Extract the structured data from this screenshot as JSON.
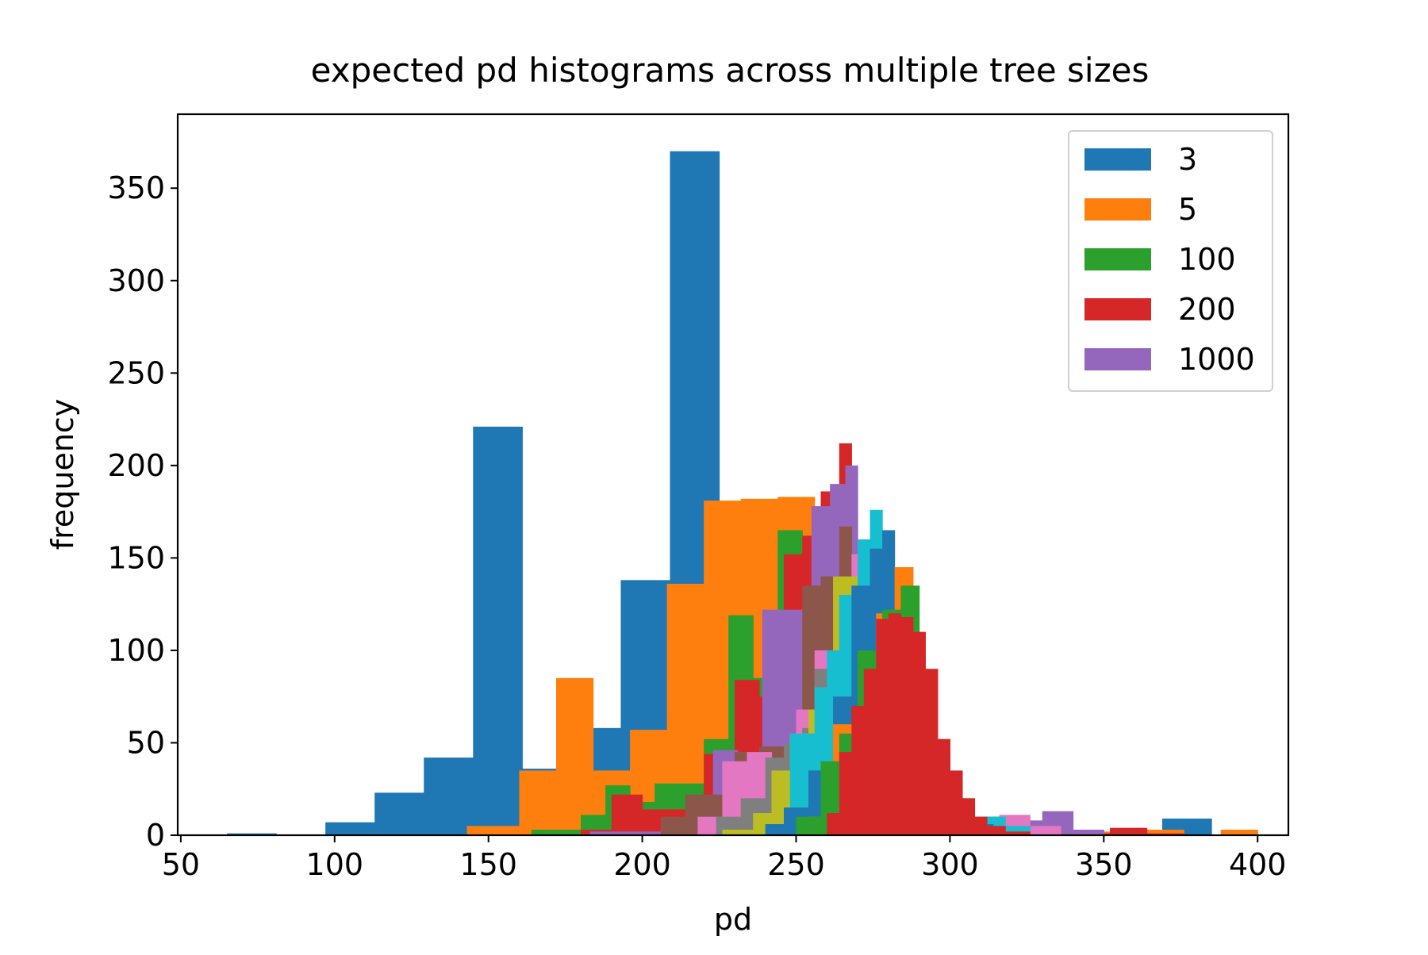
{
  "chart_data": {
    "type": "bar",
    "title": "expected pd histograms across multiple tree sizes",
    "xlabel": "pd",
    "ylabel": "frequency",
    "xlim": [
      49,
      410
    ],
    "ylim": [
      0,
      390
    ],
    "xticks": [
      50,
      100,
      150,
      200,
      250,
      300,
      350,
      400
    ],
    "yticks": [
      0,
      50,
      100,
      150,
      200,
      250,
      300,
      350
    ],
    "grid": false,
    "legend_position": "top-right",
    "legend": [
      {
        "label": "3",
        "color": "#1f77b4"
      },
      {
        "label": "5",
        "color": "#ff7f0e"
      },
      {
        "label": "100",
        "color": "#2ca02c"
      },
      {
        "label": "200",
        "color": "#d62728"
      },
      {
        "label": "1000",
        "color": "#9467bd"
      }
    ],
    "series": [
      {
        "color": "#1f77b4",
        "bins": [
          [
            65,
            81,
            1
          ],
          [
            81,
            97,
            0
          ],
          [
            97,
            113,
            7
          ],
          [
            113,
            129,
            23
          ],
          [
            129,
            145,
            42
          ],
          [
            145,
            161,
            221
          ],
          [
            161,
            177,
            36
          ],
          [
            177,
            193,
            58
          ],
          [
            193,
            209,
            138
          ],
          [
            209,
            225,
            370
          ],
          [
            225,
            241,
            5
          ],
          [
            241,
            257,
            4
          ],
          [
            257,
            273,
            12
          ],
          [
            273,
            289,
            9
          ],
          [
            289,
            305,
            20
          ],
          [
            305,
            321,
            10
          ],
          [
            321,
            337,
            3
          ],
          [
            337,
            353,
            0
          ],
          [
            353,
            369,
            2
          ],
          [
            369,
            385,
            9
          ]
        ]
      },
      {
        "color": "#ff7f0e",
        "bins": [
          [
            143,
            160,
            5
          ],
          [
            160,
            172,
            35
          ],
          [
            172,
            184,
            85
          ],
          [
            184,
            196,
            35
          ],
          [
            196,
            208,
            57
          ],
          [
            208,
            220,
            136
          ],
          [
            220,
            232,
            181
          ],
          [
            232,
            244,
            182
          ],
          [
            244,
            256,
            183
          ],
          [
            256,
            268,
            167
          ],
          [
            268,
            280,
            150
          ],
          [
            280,
            292,
            78
          ],
          [
            292,
            304,
            30
          ],
          [
            304,
            316,
            10
          ],
          [
            316,
            328,
            5
          ],
          [
            328,
            340,
            3
          ],
          [
            340,
            352,
            2
          ],
          [
            352,
            364,
            1
          ],
          [
            364,
            376,
            3
          ],
          [
            376,
            388,
            0
          ],
          [
            388,
            400,
            3
          ]
        ]
      },
      {
        "color": "#2ca02c",
        "bins": [
          [
            164,
            172,
            3
          ],
          [
            172,
            180,
            3
          ],
          [
            180,
            188,
            11
          ],
          [
            188,
            196,
            27
          ],
          [
            196,
            204,
            18
          ],
          [
            204,
            212,
            28
          ],
          [
            212,
            220,
            28
          ],
          [
            220,
            228,
            52
          ],
          [
            228,
            236,
            119
          ],
          [
            236,
            244,
            85
          ],
          [
            244,
            252,
            165
          ],
          [
            252,
            260,
            112
          ],
          [
            260,
            268,
            120
          ],
          [
            268,
            276,
            125
          ],
          [
            276,
            284,
            135
          ],
          [
            284,
            292,
            95
          ],
          [
            292,
            300,
            52
          ],
          [
            300,
            308,
            20
          ],
          [
            308,
            316,
            10
          ],
          [
            316,
            324,
            5
          ],
          [
            324,
            332,
            3
          ],
          [
            332,
            340,
            2
          ],
          [
            340,
            348,
            1
          ]
        ]
      },
      {
        "color": "#d62728",
        "bins": [
          [
            180,
            190,
            3
          ],
          [
            190,
            200,
            22
          ],
          [
            200,
            210,
            14
          ],
          [
            210,
            220,
            14
          ],
          [
            220,
            230,
            44
          ],
          [
            230,
            238,
            84
          ],
          [
            238,
            246,
            75
          ],
          [
            246,
            252,
            152
          ],
          [
            252,
            258,
            162
          ],
          [
            258,
            264,
            186
          ],
          [
            264,
            268,
            212
          ],
          [
            268,
            272,
            100
          ],
          [
            272,
            276,
            115
          ],
          [
            276,
            280,
            120
          ],
          [
            280,
            284,
            130
          ],
          [
            284,
            288,
            117
          ],
          [
            288,
            292,
            85
          ],
          [
            292,
            296,
            50
          ],
          [
            296,
            300,
            35
          ],
          [
            300,
            308,
            16
          ],
          [
            308,
            316,
            6
          ],
          [
            316,
            324,
            4
          ],
          [
            324,
            332,
            3
          ],
          [
            332,
            340,
            2
          ],
          [
            340,
            352,
            1
          ],
          [
            352,
            364,
            4
          ],
          [
            364,
            376,
            1
          ]
        ]
      },
      {
        "color": "#9467bd",
        "bins": [
          [
            183,
            191,
            2
          ],
          [
            191,
            199,
            2
          ],
          [
            199,
            207,
            2
          ],
          [
            207,
            215,
            6
          ],
          [
            215,
            223,
            20
          ],
          [
            223,
            231,
            46
          ],
          [
            231,
            239,
            45
          ],
          [
            239,
            247,
            122
          ],
          [
            247,
            255,
            122
          ],
          [
            255,
            261,
            178
          ],
          [
            261,
            266,
            190
          ],
          [
            266,
            270,
            200
          ],
          [
            270,
            274,
            148
          ],
          [
            274,
            278,
            140
          ],
          [
            278,
            284,
            125
          ],
          [
            284,
            292,
            60
          ],
          [
            292,
            300,
            10
          ],
          [
            300,
            310,
            4
          ],
          [
            310,
            320,
            2
          ],
          [
            320,
            330,
            8
          ],
          [
            330,
            340,
            13
          ],
          [
            340,
            350,
            3
          ]
        ]
      },
      {
        "color": "#8c564b",
        "bins": [
          [
            206,
            214,
            10
          ],
          [
            214,
            222,
            22
          ],
          [
            222,
            230,
            22
          ],
          [
            230,
            238,
            45
          ],
          [
            238,
            246,
            48
          ],
          [
            246,
            252,
            50
          ],
          [
            252,
            258,
            135
          ],
          [
            258,
            264,
            140
          ],
          [
            264,
            268,
            167
          ],
          [
            268,
            272,
            150
          ],
          [
            272,
            278,
            130
          ],
          [
            278,
            286,
            70
          ]
        ]
      },
      {
        "color": "#e377c2",
        "bins": [
          [
            218,
            226,
            10
          ],
          [
            226,
            234,
            40
          ],
          [
            234,
            242,
            45
          ],
          [
            242,
            250,
            40
          ],
          [
            250,
            256,
            68
          ],
          [
            256,
            262,
            100
          ],
          [
            262,
            268,
            110
          ],
          [
            268,
            272,
            152
          ],
          [
            272,
            278,
            120
          ],
          [
            278,
            286,
            60
          ],
          [
            286,
            296,
            20
          ],
          [
            296,
            306,
            6
          ],
          [
            306,
            316,
            3
          ],
          [
            316,
            326,
            11
          ],
          [
            326,
            336,
            5
          ]
        ]
      },
      {
        "color": "#7f7f7f",
        "bins": [
          [
            224,
            232,
            10
          ],
          [
            232,
            240,
            20
          ],
          [
            240,
            246,
            42
          ],
          [
            246,
            252,
            50
          ],
          [
            252,
            256,
            58
          ],
          [
            256,
            262,
            90
          ],
          [
            262,
            268,
            130
          ],
          [
            268,
            274,
            120
          ],
          [
            274,
            282,
            60
          ]
        ]
      },
      {
        "color": "#bcbd22",
        "bins": [
          [
            226,
            236,
            3
          ],
          [
            236,
            242,
            12
          ],
          [
            242,
            248,
            35
          ],
          [
            248,
            254,
            55
          ],
          [
            254,
            258,
            68
          ],
          [
            258,
            262,
            80
          ],
          [
            262,
            268,
            140
          ],
          [
            268,
            272,
            140
          ],
          [
            272,
            276,
            110
          ],
          [
            276,
            284,
            55
          ]
        ]
      },
      {
        "color": "#17becf",
        "bins": [
          [
            240,
            248,
            4
          ],
          [
            248,
            256,
            55
          ],
          [
            256,
            260,
            80
          ],
          [
            260,
            264,
            100
          ],
          [
            264,
            270,
            130
          ],
          [
            270,
            274,
            160
          ],
          [
            274,
            278,
            176
          ],
          [
            278,
            284,
            80
          ],
          [
            284,
            292,
            30
          ],
          [
            292,
            300,
            14
          ],
          [
            300,
            308,
            6
          ],
          [
            308,
            318,
            10
          ],
          [
            318,
            326,
            5
          ]
        ]
      },
      {
        "color": "#1f77b4",
        "bins": [
          [
            240,
            246,
            6
          ],
          [
            246,
            254,
            15
          ],
          [
            254,
            262,
            35
          ],
          [
            262,
            268,
            75
          ],
          [
            268,
            274,
            135
          ],
          [
            274,
            278,
            155
          ],
          [
            278,
            282,
            165
          ],
          [
            282,
            288,
            100
          ],
          [
            288,
            296,
            40
          ],
          [
            296,
            306,
            12
          ],
          [
            306,
            314,
            6
          ]
        ]
      },
      {
        "color": "#ff7f0e",
        "bins": [
          [
            254,
            262,
            10
          ],
          [
            262,
            270,
            60
          ],
          [
            270,
            276,
            95
          ],
          [
            276,
            282,
            120
          ],
          [
            282,
            288,
            145
          ],
          [
            288,
            296,
            30
          ],
          [
            296,
            304,
            10
          ],
          [
            304,
            312,
            3
          ]
        ]
      },
      {
        "color": "#2ca02c",
        "bins": [
          [
            250,
            258,
            10
          ],
          [
            258,
            264,
            40
          ],
          [
            264,
            270,
            55
          ],
          [
            270,
            278,
            100
          ],
          [
            278,
            284,
            122
          ],
          [
            284,
            290,
            135
          ],
          [
            290,
            296,
            52
          ],
          [
            296,
            304,
            28
          ],
          [
            304,
            312,
            10
          ]
        ]
      },
      {
        "color": "#d62728",
        "bins": [
          [
            260,
            264,
            12
          ],
          [
            264,
            268,
            45
          ],
          [
            268,
            272,
            70
          ],
          [
            272,
            276,
            90
          ],
          [
            276,
            280,
            117
          ],
          [
            280,
            284,
            120
          ],
          [
            284,
            288,
            118
          ],
          [
            288,
            292,
            110
          ],
          [
            292,
            296,
            90
          ],
          [
            296,
            300,
            52
          ],
          [
            300,
            304,
            35
          ],
          [
            304,
            308,
            20
          ],
          [
            308,
            312,
            10
          ],
          [
            312,
            318,
            5
          ],
          [
            318,
            326,
            2
          ]
        ]
      }
    ]
  }
}
